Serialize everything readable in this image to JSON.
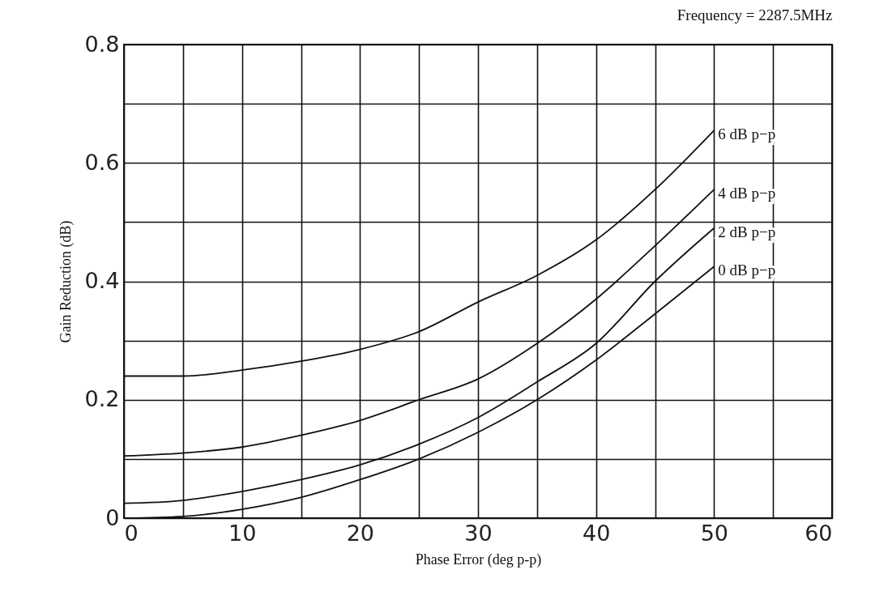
{
  "chart_data": {
    "type": "line",
    "title": "Frequency = 2287.5MHz",
    "xlabel": "Phase Error (deg p-p)",
    "ylabel": "Gain Reduction (dB)",
    "x": [
      0,
      5,
      10,
      15,
      20,
      25,
      30,
      35,
      40,
      45,
      50
    ],
    "series": [
      {
        "name": "6 dB p−p",
        "color": "#111111",
        "values": [
          0.24,
          0.24,
          0.25,
          0.265,
          0.285,
          0.315,
          0.365,
          0.41,
          0.47,
          0.555,
          0.655
        ]
      },
      {
        "name": "4 dB p−p",
        "color": "#111111",
        "values": [
          0.105,
          0.11,
          0.12,
          0.14,
          0.165,
          0.2,
          0.235,
          0.295,
          0.37,
          0.46,
          0.555
        ]
      },
      {
        "name": "2 dB p−p",
        "color": "#111111",
        "values": [
          0.025,
          0.03,
          0.045,
          0.065,
          0.09,
          0.125,
          0.17,
          0.23,
          0.295,
          0.4,
          0.49
        ]
      },
      {
        "name": "0 dB p−p",
        "color": "#111111",
        "values": [
          0,
          0.003,
          0.015,
          0.035,
          0.065,
          0.1,
          0.145,
          0.2,
          0.267,
          0.345,
          0.425
        ]
      }
    ],
    "xlim": [
      0,
      60
    ],
    "ylim": [
      0,
      0.8
    ],
    "xticks": [
      0,
      {
        "value": 5,
        "label": null
      },
      10,
      {
        "value": 15,
        "label": null
      },
      20,
      {
        "value": 25,
        "label": null
      },
      30,
      {
        "value": 35,
        "label": null
      },
      40,
      {
        "value": 45,
        "label": null
      },
      50,
      {
        "value": 55,
        "label": null
      },
      60
    ],
    "yticks": [
      0,
      {
        "value": 0.1,
        "label": null
      },
      0.2,
      {
        "value": 0.3,
        "label": null
      },
      0.4,
      {
        "value": 0.5,
        "label": null
      },
      0.6,
      {
        "value": 0.7,
        "label": null
      },
      0.8
    ],
    "grid": true,
    "legend": false,
    "marker": "none",
    "line_style": "solid"
  }
}
